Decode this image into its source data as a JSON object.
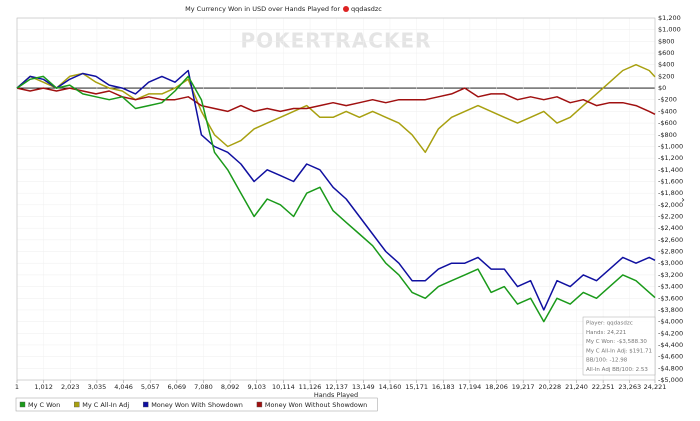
{
  "chart_data": {
    "type": "line",
    "title": "My Currency Won in USD over Hands Played for",
    "player": "qqdasdzc",
    "watermark": "POKERTRACKER",
    "xlabel": "Hands Played",
    "x": [
      0,
      500,
      1000,
      1500,
      2000,
      2500,
      3000,
      3500,
      4000,
      4500,
      5000,
      5500,
      6000,
      6500,
      7000,
      7500,
      8000,
      8500,
      9000,
      9500,
      10000,
      10500,
      11000,
      11500,
      12000,
      12500,
      13000,
      13500,
      14000,
      14500,
      15000,
      15500,
      16000,
      16500,
      17000,
      17500,
      18000,
      18500,
      19000,
      19500,
      20000,
      20500,
      21000,
      21500,
      22000,
      22500,
      23000,
      23500,
      24000,
      24221
    ],
    "series": [
      {
        "name": "My C Won",
        "color": "#1a9a1a",
        "values": [
          0,
          150,
          200,
          0,
          50,
          -100,
          -150,
          -200,
          -150,
          -350,
          -300,
          -250,
          -50,
          200,
          -200,
          -1100,
          -1400,
          -1800,
          -2200,
          -1900,
          -2000,
          -2200,
          -1800,
          -1700,
          -2100,
          -2300,
          -2500,
          -2700,
          -3000,
          -3200,
          -3500,
          -3600,
          -3400,
          -3300,
          -3200,
          -3100,
          -3500,
          -3400,
          -3700,
          -3600,
          -4000,
          -3600,
          -3700,
          -3500,
          -3600,
          -3400,
          -3200,
          -3300,
          -3500,
          -3588
        ]
      },
      {
        "name": "My C All-In Adj",
        "color": "#a8a010",
        "values": [
          0,
          200,
          100,
          0,
          200,
          250,
          100,
          0,
          -50,
          -200,
          -100,
          -100,
          0,
          150,
          -400,
          -800,
          -1000,
          -900,
          -700,
          -600,
          -500,
          -400,
          -300,
          -500,
          -500,
          -400,
          -500,
          -400,
          -500,
          -600,
          -800,
          -1100,
          -700,
          -500,
          -400,
          -300,
          -400,
          -500,
          -600,
          -500,
          -400,
          -600,
          -500,
          -300,
          -100,
          100,
          300,
          400,
          300,
          192
        ]
      },
      {
        "name": "Money Won With Showdown",
        "color": "#1010a0",
        "values": [
          0,
          200,
          150,
          0,
          150,
          250,
          200,
          50,
          0,
          -100,
          100,
          200,
          100,
          300,
          -800,
          -1000,
          -1100,
          -1300,
          -1600,
          -1400,
          -1500,
          -1600,
          -1300,
          -1400,
          -1700,
          -1900,
          -2200,
          -2500,
          -2800,
          -3000,
          -3300,
          -3300,
          -3100,
          -3000,
          -3000,
          -2900,
          -3100,
          -3100,
          -3400,
          -3300,
          -3800,
          -3300,
          -3400,
          -3200,
          -3300,
          -3100,
          -2900,
          -3000,
          -2900,
          -2950
        ]
      },
      {
        "name": "Money Won Without Showdown",
        "color": "#a01010",
        "values": [
          0,
          -50,
          0,
          -50,
          0,
          -50,
          -100,
          -50,
          -150,
          -200,
          -150,
          -200,
          -200,
          -150,
          -300,
          -350,
          -400,
          -300,
          -400,
          -350,
          -400,
          -350,
          -350,
          -300,
          -250,
          -300,
          -250,
          -200,
          -250,
          -200,
          -200,
          -200,
          -150,
          -100,
          0,
          -150,
          -100,
          -100,
          -200,
          -150,
          -200,
          -150,
          -250,
          -200,
          -300,
          -250,
          -250,
          -300,
          -400,
          -450
        ]
      }
    ],
    "xlim": [
      1,
      24221
    ],
    "xticks": [
      1,
      {
        "value": 1012,
        "label": "1,012"
      },
      {
        "value": 2023,
        "label": "2,023"
      },
      {
        "value": 3035,
        "label": "3,035"
      },
      {
        "value": 4046,
        "label": "4,046"
      },
      {
        "value": 5057,
        "label": "5,057"
      },
      {
        "value": 6069,
        "label": "6,069"
      },
      {
        "value": 7080,
        "label": "7,080"
      },
      {
        "value": 8092,
        "label": "8,092"
      },
      {
        "value": 9103,
        "label": "9,103"
      },
      {
        "value": 10114,
        "label": "10,114"
      },
      {
        "value": 11126,
        "label": "11,126"
      },
      {
        "value": 12137,
        "label": "12,137"
      },
      {
        "value": 13149,
        "label": "13,149"
      },
      {
        "value": 14160,
        "label": "14,160"
      },
      {
        "value": 15171,
        "label": "15,171"
      },
      {
        "value": 16183,
        "label": "16,183"
      },
      {
        "value": 17194,
        "label": "17,194"
      },
      {
        "value": 18206,
        "label": "18,206"
      },
      {
        "value": 19217,
        "label": "19,217"
      },
      {
        "value": 20228,
        "label": "20,228"
      },
      {
        "value": 21240,
        "label": "21,240"
      },
      {
        "value": 22251,
        "label": "22,251"
      },
      {
        "value": 23263,
        "label": "23,263"
      },
      {
        "value": 24221,
        "label": "24,221"
      }
    ],
    "ylim": [
      -5000,
      1200
    ],
    "yticks": [
      {
        "value": 1200,
        "label": "$1,200"
      },
      {
        "value": 1000,
        "label": "$1,000"
      },
      {
        "value": 800,
        "label": "$800"
      },
      {
        "value": 600,
        "label": "$600"
      },
      {
        "value": 400,
        "label": "$400"
      },
      {
        "value": 200,
        "label": "$200"
      },
      {
        "value": 0,
        "label": "$0"
      },
      {
        "value": -200,
        "label": "-$200"
      },
      {
        "value": -400,
        "label": "-$400"
      },
      {
        "value": -600,
        "label": "-$600"
      },
      {
        "value": -800,
        "label": "-$800"
      },
      {
        "value": -1000,
        "label": "-$1,000"
      },
      {
        "value": -1200,
        "label": "-$1,200"
      },
      {
        "value": -1400,
        "label": "-$1,400"
      },
      {
        "value": -1600,
        "label": "-$1,600"
      },
      {
        "value": -1800,
        "label": "-$1,800"
      },
      {
        "value": -2000,
        "label": "-$2,000"
      },
      {
        "value": -2200,
        "label": "-$2,200"
      },
      {
        "value": -2400,
        "label": "-$2,400"
      },
      {
        "value": -2600,
        "label": "-$2,600"
      },
      {
        "value": -2800,
        "label": "-$2,800"
      },
      {
        "value": -3000,
        "label": "-$3,000"
      },
      {
        "value": -3200,
        "label": "-$3,200"
      },
      {
        "value": -3400,
        "label": "-$3,400"
      },
      {
        "value": -3600,
        "label": "-$3,600"
      },
      {
        "value": -3800,
        "label": "-$3,800"
      },
      {
        "value": -4000,
        "label": "-$4,000"
      },
      {
        "value": -4200,
        "label": "-$4,200"
      },
      {
        "value": -4400,
        "label": "-$4,400"
      },
      {
        "value": -4600,
        "label": "-$4,600"
      },
      {
        "value": -4800,
        "label": "-$4,800"
      },
      {
        "value": -5000,
        "label": "-$5,000"
      }
    ],
    "grid": true,
    "tooltip": [
      "Player: qqdasdzc",
      "Hands: 24,221",
      "My C Won: -$3,588.30",
      "My C All-In Adj: $191.71",
      "BB/100: -12.98",
      "All-In Adj BB/100: 2.53"
    ]
  }
}
